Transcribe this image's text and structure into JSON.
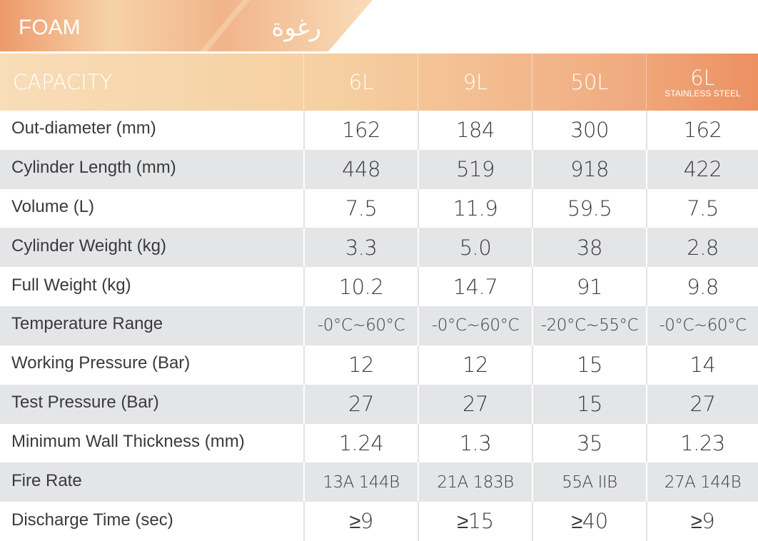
{
  "header": {
    "title": "FOAM",
    "arabic": "رغوة"
  },
  "table": {
    "columns": [
      "CAPACITY",
      "6L",
      "9L",
      "50L",
      "6L"
    ],
    "column_note": "STAINLESS STEEL",
    "rows": [
      [
        "Out-diameter (mm)",
        "162",
        "184",
        "300",
        "162"
      ],
      [
        "Cylinder Length (mm)",
        "448",
        "519",
        "918",
        "422"
      ],
      [
        "Volume (L)",
        "7.5",
        "11.9",
        "59.5",
        "7.5"
      ],
      [
        "Cylinder Weight (kg)",
        "3.3",
        "5.0",
        "38",
        "2.8"
      ],
      [
        "Full Weight (kg)",
        "10.2",
        "14.7",
        "91",
        "9.8"
      ],
      [
        "Temperature Range",
        "-0°C~60°C",
        "-0°C~60°C",
        "-20°C~55°C",
        "-0°C~60°C"
      ],
      [
        "Working Pressure (Bar)",
        "12",
        "12",
        "15",
        "14"
      ],
      [
        "Test Pressure (Bar)",
        "27",
        "27",
        "15",
        "27"
      ],
      [
        "Minimum Wall Thickness (mm)",
        "1.24",
        "1.3",
        "35",
        "1.23"
      ],
      [
        "Fire Rate",
        "13A 144B",
        "21A 183B",
        "55A IIB",
        "27A 144B"
      ],
      [
        "Discharge Time (sec)",
        "≥9",
        "≥15",
        "≥40",
        "≥9"
      ]
    ]
  }
}
